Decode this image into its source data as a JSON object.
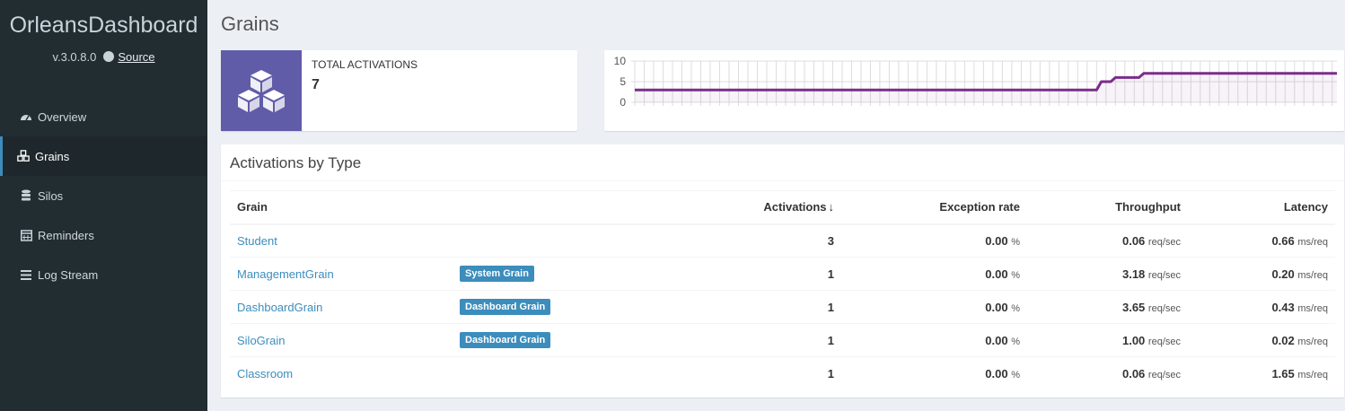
{
  "sidebar": {
    "brand": "OrleansDashboard",
    "version": "v.3.0.8.0",
    "source_label": "Source",
    "items": [
      {
        "label": "Overview",
        "icon": "dashboard-icon"
      },
      {
        "label": "Grains",
        "icon": "cubes-icon",
        "active": true
      },
      {
        "label": "Silos",
        "icon": "database-icon"
      },
      {
        "label": "Reminders",
        "icon": "calendar-icon"
      },
      {
        "label": "Log Stream",
        "icon": "bars-icon"
      }
    ]
  },
  "page": {
    "title": "Grains"
  },
  "stat": {
    "label": "TOTAL ACTIVATIONS",
    "value": "7",
    "icon_color": "#605ca8"
  },
  "chart_data": {
    "type": "line",
    "series": [
      {
        "color": "#7b2d8b",
        "values": [
          3,
          3,
          3,
          3,
          3,
          3,
          3,
          3,
          3,
          3,
          3,
          3,
          3,
          3,
          3,
          3,
          3,
          3,
          3,
          3,
          3,
          3,
          3,
          3,
          3,
          3,
          3,
          3,
          3,
          3,
          3,
          3,
          3,
          3,
          3,
          3,
          3,
          3,
          3,
          3,
          3,
          3,
          3,
          3,
          3,
          3,
          3,
          3,
          3,
          3,
          3,
          3,
          3,
          3,
          3,
          3,
          3,
          3,
          3,
          3,
          3,
          3,
          3,
          3,
          3,
          3,
          3,
          3,
          3,
          3,
          3,
          3,
          3,
          3,
          3,
          3,
          3,
          3,
          3,
          3,
          3,
          3,
          3,
          3,
          3,
          3,
          3,
          3,
          3,
          3,
          3,
          3,
          3,
          3,
          3,
          3,
          3,
          3,
          3,
          5,
          5,
          5,
          6,
          6,
          6,
          6,
          6,
          6,
          7,
          7,
          7,
          7,
          7,
          7,
          7,
          7,
          7,
          7,
          7,
          7,
          7,
          7,
          7,
          7,
          7,
          7,
          7,
          7,
          7,
          7,
          7,
          7,
          7,
          7,
          7,
          7,
          7,
          7,
          7,
          7,
          7,
          7,
          7,
          7,
          7,
          7,
          7,
          7,
          7,
          7
        ]
      }
    ],
    "ylim": [
      0,
      10
    ],
    "yticks": [
      "10",
      "5",
      "0"
    ],
    "grid": true
  },
  "table": {
    "title": "Activations by Type",
    "headers": {
      "grain": "Grain",
      "activations": "Activations",
      "sort_arrow": "🡻",
      "exception": "Exception rate",
      "throughput": "Throughput",
      "latency": "Latency"
    },
    "rows": [
      {
        "name": "Student",
        "badge": "",
        "activations": "3",
        "exception": "0.00",
        "exception_unit": "%",
        "throughput": "0.06",
        "throughput_unit": "req/sec",
        "latency": "0.66",
        "latency_unit": "ms/req"
      },
      {
        "name": "ManagementGrain",
        "badge": "System Grain",
        "activations": "1",
        "exception": "0.00",
        "exception_unit": "%",
        "throughput": "3.18",
        "throughput_unit": "req/sec",
        "latency": "0.20",
        "latency_unit": "ms/req"
      },
      {
        "name": "DashboardGrain",
        "badge": "Dashboard Grain",
        "activations": "1",
        "exception": "0.00",
        "exception_unit": "%",
        "throughput": "3.65",
        "throughput_unit": "req/sec",
        "latency": "0.43",
        "latency_unit": "ms/req"
      },
      {
        "name": "SiloGrain",
        "badge": "Dashboard Grain",
        "activations": "1",
        "exception": "0.00",
        "exception_unit": "%",
        "throughput": "1.00",
        "throughput_unit": "req/sec",
        "latency": "0.02",
        "latency_unit": "ms/req"
      },
      {
        "name": "Classroom",
        "badge": "",
        "activations": "1",
        "exception": "0.00",
        "exception_unit": "%",
        "throughput": "0.06",
        "throughput_unit": "req/sec",
        "latency": "1.65",
        "latency_unit": "ms/req"
      }
    ]
  }
}
